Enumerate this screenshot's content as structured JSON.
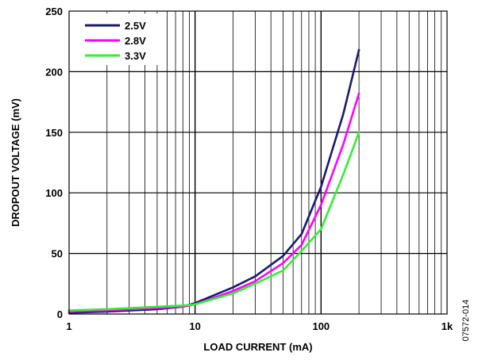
{
  "chart_data": {
    "type": "line",
    "xscale": "log",
    "xlim": [
      1,
      1000
    ],
    "ylim": [
      0,
      250
    ],
    "xlabel": "LOAD CURRENT (mA)",
    "ylabel": "DROPOUT VOLTAGE (mV)",
    "x_ticks": [
      {
        "value": 1,
        "label": "1"
      },
      {
        "value": 10,
        "label": "10"
      },
      {
        "value": 100,
        "label": "100"
      },
      {
        "value": 1000,
        "label": "1k"
      }
    ],
    "y_ticks": [
      {
        "value": 0,
        "label": "0"
      },
      {
        "value": 50,
        "label": "50"
      },
      {
        "value": 100,
        "label": "100"
      },
      {
        "value": 150,
        "label": "150"
      },
      {
        "value": 200,
        "label": "200"
      },
      {
        "value": 250,
        "label": "250"
      }
    ],
    "grid": true,
    "legend_position": "top-left",
    "series": [
      {
        "name": "2.5V",
        "color": "#1a1a6e",
        "points": [
          [
            1,
            1
          ],
          [
            2,
            2
          ],
          [
            5,
            4
          ],
          [
            8,
            6
          ],
          [
            10,
            9
          ],
          [
            20,
            22
          ],
          [
            30,
            31
          ],
          [
            50,
            48
          ],
          [
            70,
            66
          ],
          [
            100,
            105
          ],
          [
            150,
            165
          ],
          [
            200,
            218
          ]
        ]
      },
      {
        "name": "2.8V",
        "color": "#ff00ff",
        "points": [
          [
            1,
            2
          ],
          [
            2,
            3
          ],
          [
            5,
            5
          ],
          [
            8,
            6
          ],
          [
            10,
            8
          ],
          [
            20,
            19
          ],
          [
            30,
            27
          ],
          [
            50,
            42
          ],
          [
            70,
            57
          ],
          [
            100,
            90
          ],
          [
            150,
            140
          ],
          [
            200,
            182
          ]
        ]
      },
      {
        "name": "3.3V",
        "color": "#33ee33",
        "points": [
          [
            1,
            3
          ],
          [
            2,
            4
          ],
          [
            5,
            6
          ],
          [
            8,
            7
          ],
          [
            10,
            8
          ],
          [
            20,
            17
          ],
          [
            30,
            25
          ],
          [
            50,
            36
          ],
          [
            70,
            52
          ],
          [
            100,
            70
          ],
          [
            150,
            115
          ],
          [
            200,
            150
          ]
        ]
      }
    ]
  },
  "figure_id": "07572-014"
}
